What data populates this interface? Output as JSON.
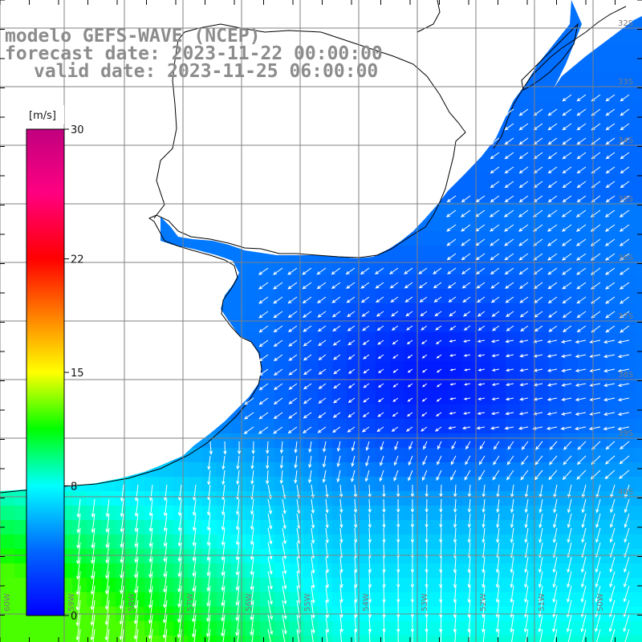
{
  "title": {
    "line1": "modelo GEFS-WAVE (NCEP)",
    "line2": "forecast date: 2023-11-22 00:00:00",
    "line3": "valid date: 2023-11-25 06:00:00"
  },
  "colorbar": {
    "unit": "[m/s]",
    "ticks": [
      {
        "value": 30,
        "label": "30"
      },
      {
        "value": 22,
        "label": "22"
      },
      {
        "value": 15,
        "label": "15"
      },
      {
        "value": 8,
        "label": "8"
      },
      {
        "value": 0,
        "label": "0"
      }
    ],
    "range": [
      0,
      30
    ],
    "stops": [
      {
        "value": 0,
        "color": "#0000ff"
      },
      {
        "value": 4,
        "color": "#0066ff"
      },
      {
        "value": 8,
        "color": "#00ffff"
      },
      {
        "value": 11.5,
        "color": "#00ff00"
      },
      {
        "value": 15,
        "color": "#ffff00"
      },
      {
        "value": 22,
        "color": "#ff0000"
      },
      {
        "value": 26,
        "color": "#ff0080"
      },
      {
        "value": 30,
        "color": "#c0007f"
      }
    ]
  },
  "lat_labels": [
    "32S",
    "33S",
    "34S",
    "35S",
    "36S",
    "37S",
    "38S",
    "39S",
    "40S"
  ],
  "lon_labels": [
    "60W",
    "59W",
    "58W",
    "57W",
    "56W",
    "55W",
    "54W",
    "53W",
    "52W",
    "51W",
    "50W"
  ],
  "colors": {
    "land": "#ffffff",
    "coast": "#000000",
    "grid": "#808080",
    "arrow": "#ffffff",
    "title": "#8c8c8c"
  }
}
